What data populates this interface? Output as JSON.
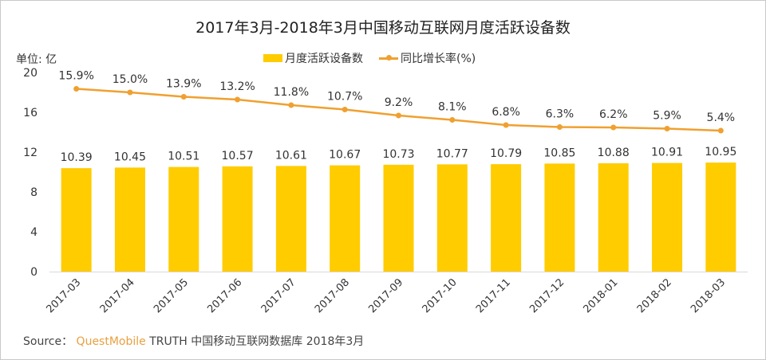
{
  "chart_data": {
    "type": "bar+line",
    "title": "2017年3月-2018年3月中国移动互联网月度活跃设备数",
    "ylabel": "单位: 亿",
    "ylim": [
      0,
      20
    ],
    "yticks": [
      0,
      4,
      8,
      12,
      16,
      20
    ],
    "y2lim": [
      -30,
      20
    ],
    "y2_visible": false,
    "grid": false,
    "legend_position": "top",
    "categories": [
      "2017-03",
      "2017-04",
      "2017-05",
      "2017-06",
      "2017-07",
      "2017-08",
      "2017-09",
      "2017-10",
      "2017-11",
      "2017-12",
      "2018-01",
      "2018-02",
      "2018-03"
    ],
    "series": [
      {
        "name": "月度活跃设备数",
        "type": "bar",
        "axis": "left",
        "color": "#FFCC00",
        "values": [
          10.39,
          10.45,
          10.51,
          10.57,
          10.61,
          10.67,
          10.73,
          10.77,
          10.79,
          10.85,
          10.88,
          10.91,
          10.95
        ],
        "labels": [
          "10.39",
          "10.45",
          "10.51",
          "10.57",
          "10.61",
          "10.67",
          "10.73",
          "10.77",
          "10.79",
          "10.85",
          "10.88",
          "10.91",
          "10.95"
        ]
      },
      {
        "name": "同比增长率(%)",
        "type": "line",
        "axis": "right",
        "color": "#F0A030",
        "values": [
          15.9,
          15.0,
          13.9,
          13.2,
          11.8,
          10.7,
          9.2,
          8.1,
          6.8,
          6.3,
          6.2,
          5.9,
          5.4
        ],
        "labels": [
          "15.9%",
          "15.0%",
          "13.9%",
          "13.2%",
          "11.8%",
          "10.7%",
          "9.2%",
          "8.1%",
          "6.8%",
          "6.3%",
          "6.2%",
          "5.9%",
          "5.4%"
        ]
      }
    ]
  },
  "source": {
    "prefix": "Source：",
    "brand": "QuestMobile",
    "text": "TRUTH 中国移动互联网数据库 2018年3月"
  }
}
